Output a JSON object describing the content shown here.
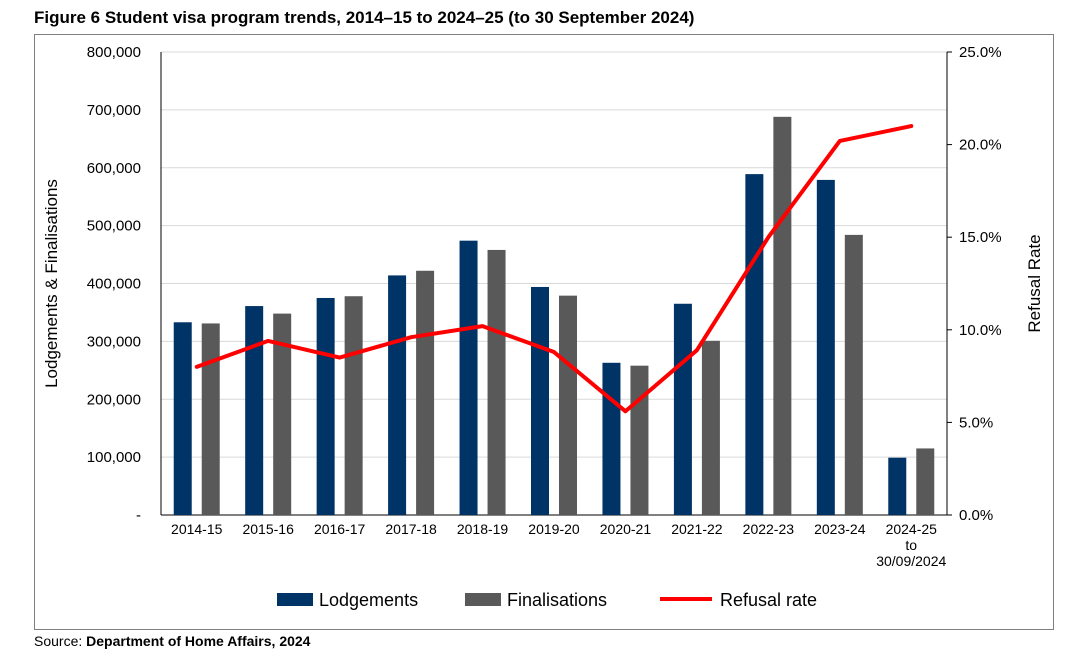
{
  "page": {
    "title": "Figure 6 Student visa program trends, 2014–15 to 2024–25 (to 30 September 2024)",
    "source_prefix": "Source: ",
    "source_name": "Department of Home Affairs, 2024"
  },
  "chart_data": {
    "type": "bar",
    "title": "Figure 6 Student visa program trends, 2014–15 to 2024–25 (to 30 September 2024)",
    "categories": [
      [
        "2014-15"
      ],
      [
        "2015-16"
      ],
      [
        "2016-17"
      ],
      [
        "2017-18"
      ],
      [
        "2018-19"
      ],
      [
        "2019-20"
      ],
      [
        "2020-21"
      ],
      [
        "2021-22"
      ],
      [
        "2022-23"
      ],
      [
        "2023-24"
      ],
      [
        "2024-25",
        "to",
        "30/09/2024"
      ]
    ],
    "series": [
      {
        "name": "Lodgements",
        "type": "bar",
        "axis": "left",
        "color": "#003366",
        "values": [
          333000,
          361000,
          375000,
          414000,
          474000,
          394000,
          263000,
          365000,
          589000,
          579000,
          99000
        ]
      },
      {
        "name": "Finalisations",
        "type": "bar",
        "axis": "left",
        "color": "#595959",
        "values": [
          331000,
          348000,
          378000,
          422000,
          458000,
          379000,
          258000,
          301000,
          688000,
          484000,
          115000
        ]
      },
      {
        "name": "Refusal rate",
        "type": "line",
        "axis": "right",
        "color": "#ff0000",
        "values": [
          0.08,
          0.094,
          0.085,
          0.096,
          0.102,
          0.088,
          0.056,
          0.089,
          0.15,
          0.202,
          0.21
        ]
      }
    ],
    "ylabel": "Lodgements & Finalisations",
    "ylabel_right": "Refusal Rate",
    "ylim": [
      0,
      800000
    ],
    "ylim_right": [
      0,
      0.25
    ],
    "yticks": [
      "-",
      "100,000",
      "200,000",
      "300,000",
      "400,000",
      "500,000",
      "600,000",
      "700,000",
      "800,000"
    ],
    "yticks_right": [
      "0.0%",
      "5.0%",
      "10.0%",
      "15.0%",
      "20.0%",
      "25.0%"
    ],
    "grid": "horizontal",
    "legend_position": "bottom"
  }
}
